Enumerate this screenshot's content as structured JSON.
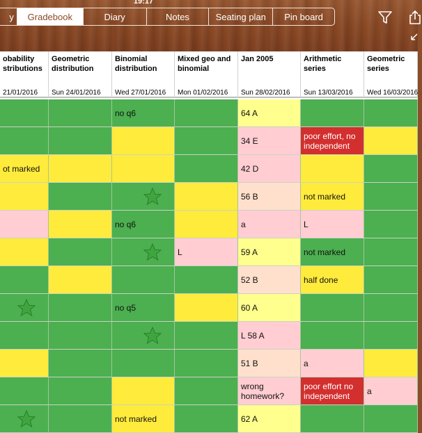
{
  "status": {
    "time": "19:17"
  },
  "tabs": [
    {
      "label": "y",
      "active": false
    },
    {
      "label": "Gradebook",
      "active": true
    },
    {
      "label": "Diary",
      "active": false
    },
    {
      "label": "Notes",
      "active": false
    },
    {
      "label": "Seating plan",
      "active": false
    },
    {
      "label": "Pin board",
      "active": false
    }
  ],
  "icons": {
    "filter": "filter-icon",
    "export": "export-icon",
    "sort": "sort-icon",
    "star": "star-icon"
  },
  "colors": {
    "green": "#4caf50",
    "yellow": "#ffeb3b",
    "pink": "#ffcdd2",
    "lightyellow": "#ffff8d",
    "peach": "#ffe0cc",
    "red": "#d32f2f"
  },
  "columns": [
    {
      "name": "obability\nstributions",
      "date": "21/01/2016"
    },
    {
      "name": "Geometric\ndistribution",
      "date": "Sun 24/01/2016"
    },
    {
      "name": "Binomial\ndistribution",
      "date": "Wed 27/01/2016"
    },
    {
      "name": "Mixed geo and\nbinomial",
      "date": "Mon 01/02/2016"
    },
    {
      "name": "Jan 2005",
      "date": "Sun 28/02/2016"
    },
    {
      "name": "Arithmetic\nseries",
      "date": "Sun 13/03/2016"
    },
    {
      "name": "Geometric\nseries",
      "date": "Wed 16/03/2016"
    }
  ],
  "rows": [
    [
      {
        "c": "g",
        "t": ""
      },
      {
        "c": "g",
        "t": ""
      },
      {
        "c": "g",
        "t": "no q6"
      },
      {
        "c": "g",
        "t": ""
      },
      {
        "c": "ly",
        "t": "64 A"
      },
      {
        "c": "g",
        "t": ""
      },
      {
        "c": "g",
        "t": ""
      }
    ],
    [
      {
        "c": "g",
        "t": ""
      },
      {
        "c": "g",
        "t": ""
      },
      {
        "c": "y",
        "t": ""
      },
      {
        "c": "g",
        "t": ""
      },
      {
        "c": "p",
        "t": "34 E"
      },
      {
        "c": "r",
        "t": "poor effort, no independent"
      },
      {
        "c": "y",
        "t": ""
      }
    ],
    [
      {
        "c": "y",
        "t": "ot marked"
      },
      {
        "c": "y",
        "t": ""
      },
      {
        "c": "y",
        "t": ""
      },
      {
        "c": "g",
        "t": ""
      },
      {
        "c": "p",
        "t": "42 D"
      },
      {
        "c": "y",
        "t": ""
      },
      {
        "c": "g",
        "t": ""
      }
    ],
    [
      {
        "c": "y",
        "t": ""
      },
      {
        "c": "g",
        "t": ""
      },
      {
        "c": "g",
        "t": "",
        "star": true
      },
      {
        "c": "y",
        "t": ""
      },
      {
        "c": "pe",
        "t": "56 B"
      },
      {
        "c": "y",
        "t": "not marked"
      },
      {
        "c": "g",
        "t": ""
      }
    ],
    [
      {
        "c": "p",
        "t": ""
      },
      {
        "c": "y",
        "t": ""
      },
      {
        "c": "g",
        "t": "no q6"
      },
      {
        "c": "y",
        "t": ""
      },
      {
        "c": "p",
        "t": "a"
      },
      {
        "c": "p",
        "t": "L"
      },
      {
        "c": "g",
        "t": ""
      }
    ],
    [
      {
        "c": "y",
        "t": ""
      },
      {
        "c": "g",
        "t": ""
      },
      {
        "c": "g",
        "t": "",
        "star": true
      },
      {
        "c": "p",
        "t": "L"
      },
      {
        "c": "ly",
        "t": "59 A"
      },
      {
        "c": "g",
        "t": "not marked"
      },
      {
        "c": "g",
        "t": ""
      }
    ],
    [
      {
        "c": "g",
        "t": ""
      },
      {
        "c": "y",
        "t": ""
      },
      {
        "c": "g",
        "t": ""
      },
      {
        "c": "g",
        "t": ""
      },
      {
        "c": "pe",
        "t": "52 B"
      },
      {
        "c": "y",
        "t": "half done"
      },
      {
        "c": "g",
        "t": ""
      }
    ],
    [
      {
        "c": "g",
        "t": "",
        "star": true
      },
      {
        "c": "g",
        "t": ""
      },
      {
        "c": "g",
        "t": "no q5"
      },
      {
        "c": "y",
        "t": ""
      },
      {
        "c": "ly",
        "t": "60 A"
      },
      {
        "c": "g",
        "t": ""
      },
      {
        "c": "g",
        "t": ""
      }
    ],
    [
      {
        "c": "g",
        "t": ""
      },
      {
        "c": "g",
        "t": ""
      },
      {
        "c": "g",
        "t": "",
        "star": true
      },
      {
        "c": "g",
        "t": ""
      },
      {
        "c": "p",
        "t": "L 58 A"
      },
      {
        "c": "g",
        "t": ""
      },
      {
        "c": "g",
        "t": ""
      }
    ],
    [
      {
        "c": "y",
        "t": ""
      },
      {
        "c": "g",
        "t": ""
      },
      {
        "c": "g",
        "t": ""
      },
      {
        "c": "g",
        "t": ""
      },
      {
        "c": "pe",
        "t": "51 B"
      },
      {
        "c": "p",
        "t": "a"
      },
      {
        "c": "y",
        "t": ""
      }
    ],
    [
      {
        "c": "g",
        "t": ""
      },
      {
        "c": "g",
        "t": ""
      },
      {
        "c": "y",
        "t": ""
      },
      {
        "c": "g",
        "t": ""
      },
      {
        "c": "p",
        "t": "wrong homework?"
      },
      {
        "c": "r",
        "t": "poor effort no independent"
      },
      {
        "c": "p",
        "t": "a"
      }
    ],
    [
      {
        "c": "g",
        "t": "",
        "star": true
      },
      {
        "c": "g",
        "t": ""
      },
      {
        "c": "y",
        "t": "not marked"
      },
      {
        "c": "g",
        "t": ""
      },
      {
        "c": "ly",
        "t": "62 A"
      },
      {
        "c": "g",
        "t": ""
      },
      {
        "c": "g",
        "t": ""
      }
    ]
  ]
}
